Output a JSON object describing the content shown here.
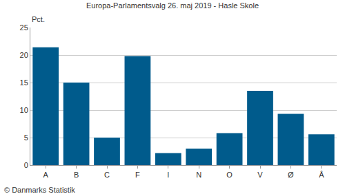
{
  "chart_data": {
    "type": "bar",
    "title": "Europa-Parlamentsvalg 26. maj 2019 - Hasle Skole",
    "ylabel": "Pct.",
    "annotations": [
      "© Danmarks Statistik"
    ],
    "categories": [
      "A",
      "B",
      "C",
      "F",
      "I",
      "N",
      "O",
      "V",
      "Ø",
      "Å"
    ],
    "values": [
      21.4,
      15.0,
      5.0,
      19.8,
      2.2,
      3.0,
      5.8,
      13.5,
      9.3,
      5.6
    ],
    "color": "#005b8c",
    "ylim": [
      0,
      25
    ],
    "yticks": [
      0,
      5,
      10,
      15,
      20,
      25
    ],
    "grid": true
  }
}
